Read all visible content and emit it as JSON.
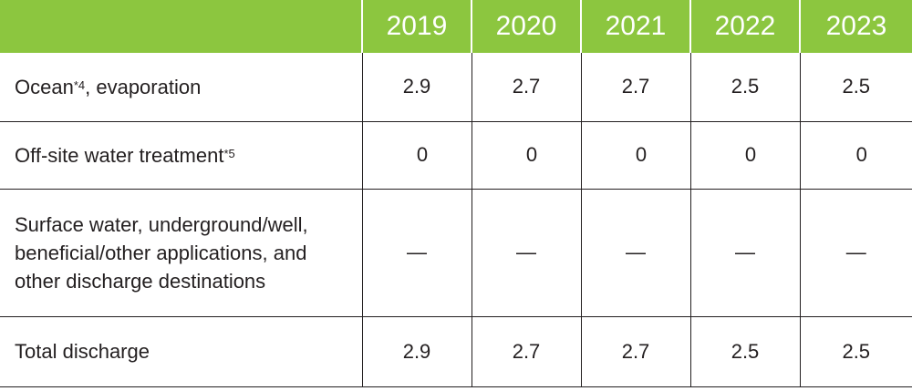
{
  "header": {
    "years": [
      "2019",
      "2020",
      "2021",
      "2022",
      "2023"
    ]
  },
  "rows": [
    {
      "label": "Ocean",
      "label_sup": "*4",
      "label_suffix": ", evaporation",
      "values": [
        "2.9",
        "2.7",
        "2.7",
        "2.5",
        "2.5"
      ]
    },
    {
      "label": "Off-site water treatment",
      "label_sup": "*5",
      "values": [
        "0",
        "0",
        "0",
        "0",
        "0"
      ]
    },
    {
      "label_lines": [
        "Surface water, underground/well,",
        "beneficial/other applications, and",
        "other discharge destinations"
      ],
      "values": [
        "—",
        "—",
        "—",
        "—",
        "—"
      ]
    },
    {
      "label": "Total discharge",
      "values": [
        "2.9",
        "2.7",
        "2.7",
        "2.5",
        "2.5"
      ]
    }
  ],
  "colors": {
    "header_bg": "#8cc63f",
    "header_text": "#ffffff",
    "text": "#231f20",
    "rule": "#231f20"
  }
}
